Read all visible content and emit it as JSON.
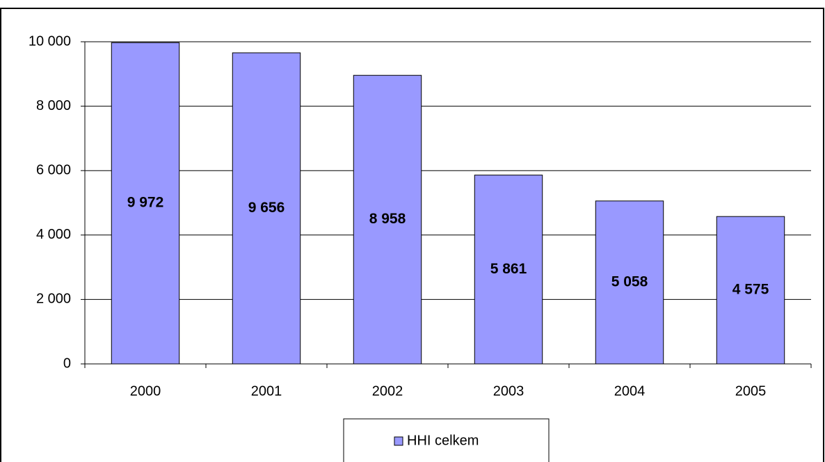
{
  "chart_data": {
    "type": "bar",
    "categories": [
      "2000",
      "2001",
      "2002",
      "2003",
      "2004",
      "2005"
    ],
    "series": [
      {
        "name": "HHI celkem",
        "color": "#9999ff",
        "values": [
          9972,
          9656,
          8958,
          5861,
          5058,
          4575
        ],
        "value_labels": [
          "9 972",
          "9 656",
          "8 958",
          "5 861",
          "5 058",
          "4 575"
        ]
      }
    ],
    "ylim": [
      0,
      10000
    ],
    "yticks": [
      {
        "value": 0,
        "label": "0"
      },
      {
        "value": 2000,
        "label": "2 000"
      },
      {
        "value": 4000,
        "label": "4 000"
      },
      {
        "value": 6000,
        "label": "6 000"
      },
      {
        "value": 8000,
        "label": "8 000"
      },
      {
        "value": 10000,
        "label": "10 000"
      }
    ],
    "grid": true,
    "legend": "bottom"
  }
}
